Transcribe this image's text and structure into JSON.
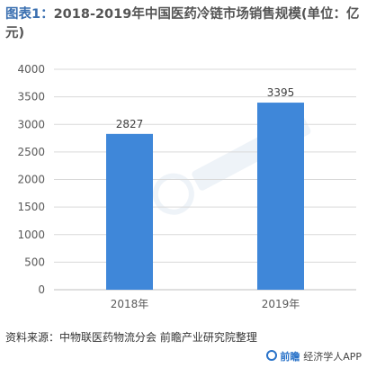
{
  "title": {
    "prefix": "图表1：",
    "main": "2018-2019年中国医药冷链市场销售规模(单位：亿元)"
  },
  "source": "资料来源：中物联医药物流分会 前瞻产业研究院整理",
  "brand": {
    "logo_text": "前瞻",
    "app_text": "经济学人APP"
  },
  "colors": {
    "bar": "#3f87d9",
    "axis": "#bfbfbf",
    "grid": "#d9d9d9",
    "tick_text": "#595959",
    "label_text": "#404040"
  },
  "chart_data": {
    "type": "bar",
    "categories": [
      "2018年",
      "2019年"
    ],
    "values": [
      2827,
      3395
    ],
    "data_labels": [
      "2827",
      "3395"
    ],
    "title": "2018-2019年中国医药冷链市场销售规模(单位：亿元)",
    "xlabel": "",
    "ylabel": "",
    "ylim": [
      0,
      4000
    ],
    "yticks": [
      0,
      500,
      1000,
      1500,
      2000,
      2500,
      3000,
      3500,
      4000
    ],
    "grid": true,
    "legend": "none"
  }
}
